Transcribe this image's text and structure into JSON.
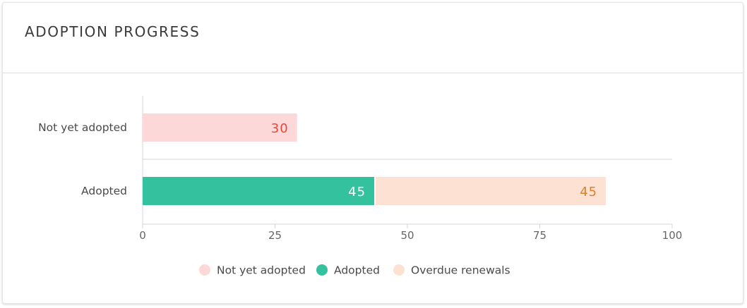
{
  "header": {
    "title": "ADOPTION PROGRESS"
  },
  "colors": {
    "not_yet_adopted": "#fdd8d8",
    "adopted": "#33c29d",
    "overdue_renewals": "#fde2d3",
    "label_not_yet": "#e5483f",
    "label_adopted": "#ffffff",
    "label_overdue": "#d9822b",
    "axis": "#d6d6d6",
    "text": "#4a4a4a"
  },
  "chart_data": {
    "type": "bar",
    "orientation": "horizontal",
    "stacked": true,
    "categories": [
      "Not yet adopted",
      "Adopted"
    ],
    "series": [
      {
        "name": "Not yet adopted",
        "color": "#fdd8d8",
        "label_color": "#e5483f",
        "values": [
          30,
          0
        ]
      },
      {
        "name": "Adopted",
        "color": "#33c29d",
        "label_color": "#ffffff",
        "values": [
          0,
          45
        ]
      },
      {
        "name": "Overdue renewals",
        "color": "#fde2d3",
        "label_color": "#d9822b",
        "values": [
          0,
          45
        ]
      }
    ],
    "data_labels": [
      [
        "30",
        "",
        ""
      ],
      [
        "",
        "45",
        "45"
      ]
    ],
    "xlim": [
      0,
      100
    ],
    "x_ticks": [
      0,
      25,
      50,
      75,
      100
    ],
    "x_tick_labels": [
      "0",
      "25",
      "50",
      "75",
      "100"
    ],
    "legend_position": "bottom-center",
    "grid": false
  }
}
